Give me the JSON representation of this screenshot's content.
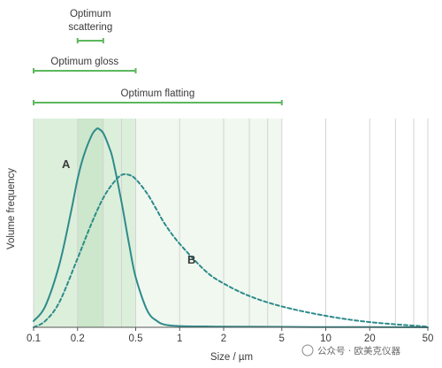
{
  "chart_data": {
    "type": "line",
    "title": "",
    "xlabel": "Size / µm",
    "ylabel": "Volume frequency",
    "xscale": "log",
    "xlim": [
      0.1,
      50
    ],
    "ylim": [
      0,
      1.0
    ],
    "x_ticks": [
      0.1,
      0.2,
      0.5,
      1,
      2,
      5,
      10,
      20,
      50
    ],
    "x_tick_labels": [
      "0.1",
      "0.2",
      "0.5",
      "1",
      "2",
      "5",
      "10",
      "20",
      "50"
    ],
    "x_minor_ticks": [
      0.3,
      0.4,
      3,
      4,
      30,
      40
    ],
    "grid": "vertical",
    "ranges": [
      {
        "label": "Optimum scattering",
        "label_lines": [
          "Optimum",
          "scattering"
        ],
        "from": 0.2,
        "to": 0.3,
        "color": "#5cb85c"
      },
      {
        "label": "Optimum gloss",
        "from": 0.1,
        "to": 0.5,
        "color": "#5cb85c"
      },
      {
        "label": "Optimum flatting",
        "from": 0.1,
        "to": 5,
        "color": "#5cb85c"
      }
    ],
    "shaded_regions": [
      {
        "from": 0.1,
        "to": 0.5,
        "color": "#dcefdb"
      },
      {
        "from": 0.2,
        "to": 0.3,
        "color": "#cce7cb"
      },
      {
        "from": 0.5,
        "to": 5,
        "color": "#f1f8f0"
      }
    ],
    "series": [
      {
        "name": "A",
        "style": "solid",
        "color": "#2e8b8b",
        "x": [
          0.1,
          0.12,
          0.15,
          0.18,
          0.2,
          0.22,
          0.25,
          0.27,
          0.28,
          0.3,
          0.33,
          0.35,
          0.4,
          0.45,
          0.5,
          0.6,
          0.7,
          0.8,
          1,
          1.5,
          2,
          5,
          10,
          20,
          50
        ],
        "y": [
          0.03,
          0.1,
          0.3,
          0.55,
          0.71,
          0.82,
          0.92,
          0.95,
          0.95,
          0.93,
          0.86,
          0.8,
          0.6,
          0.4,
          0.24,
          0.08,
          0.03,
          0.012,
          0.006,
          0.004,
          0.003,
          0.002,
          0.001,
          0.001,
          0.0
        ]
      },
      {
        "name": "B",
        "style": "dashed",
        "color": "#2e8b8b",
        "x": [
          0.1,
          0.12,
          0.15,
          0.2,
          0.25,
          0.3,
          0.35,
          0.4,
          0.45,
          0.5,
          0.6,
          0.7,
          0.8,
          1,
          1.5,
          2,
          3,
          5,
          10,
          20,
          50
        ],
        "y": [
          0.0,
          0.03,
          0.12,
          0.33,
          0.5,
          0.62,
          0.69,
          0.73,
          0.73,
          0.71,
          0.64,
          0.56,
          0.49,
          0.4,
          0.27,
          0.21,
          0.15,
          0.1,
          0.055,
          0.025,
          0.003
        ]
      }
    ]
  },
  "watermark": "公众号 · 欧美克仪器"
}
